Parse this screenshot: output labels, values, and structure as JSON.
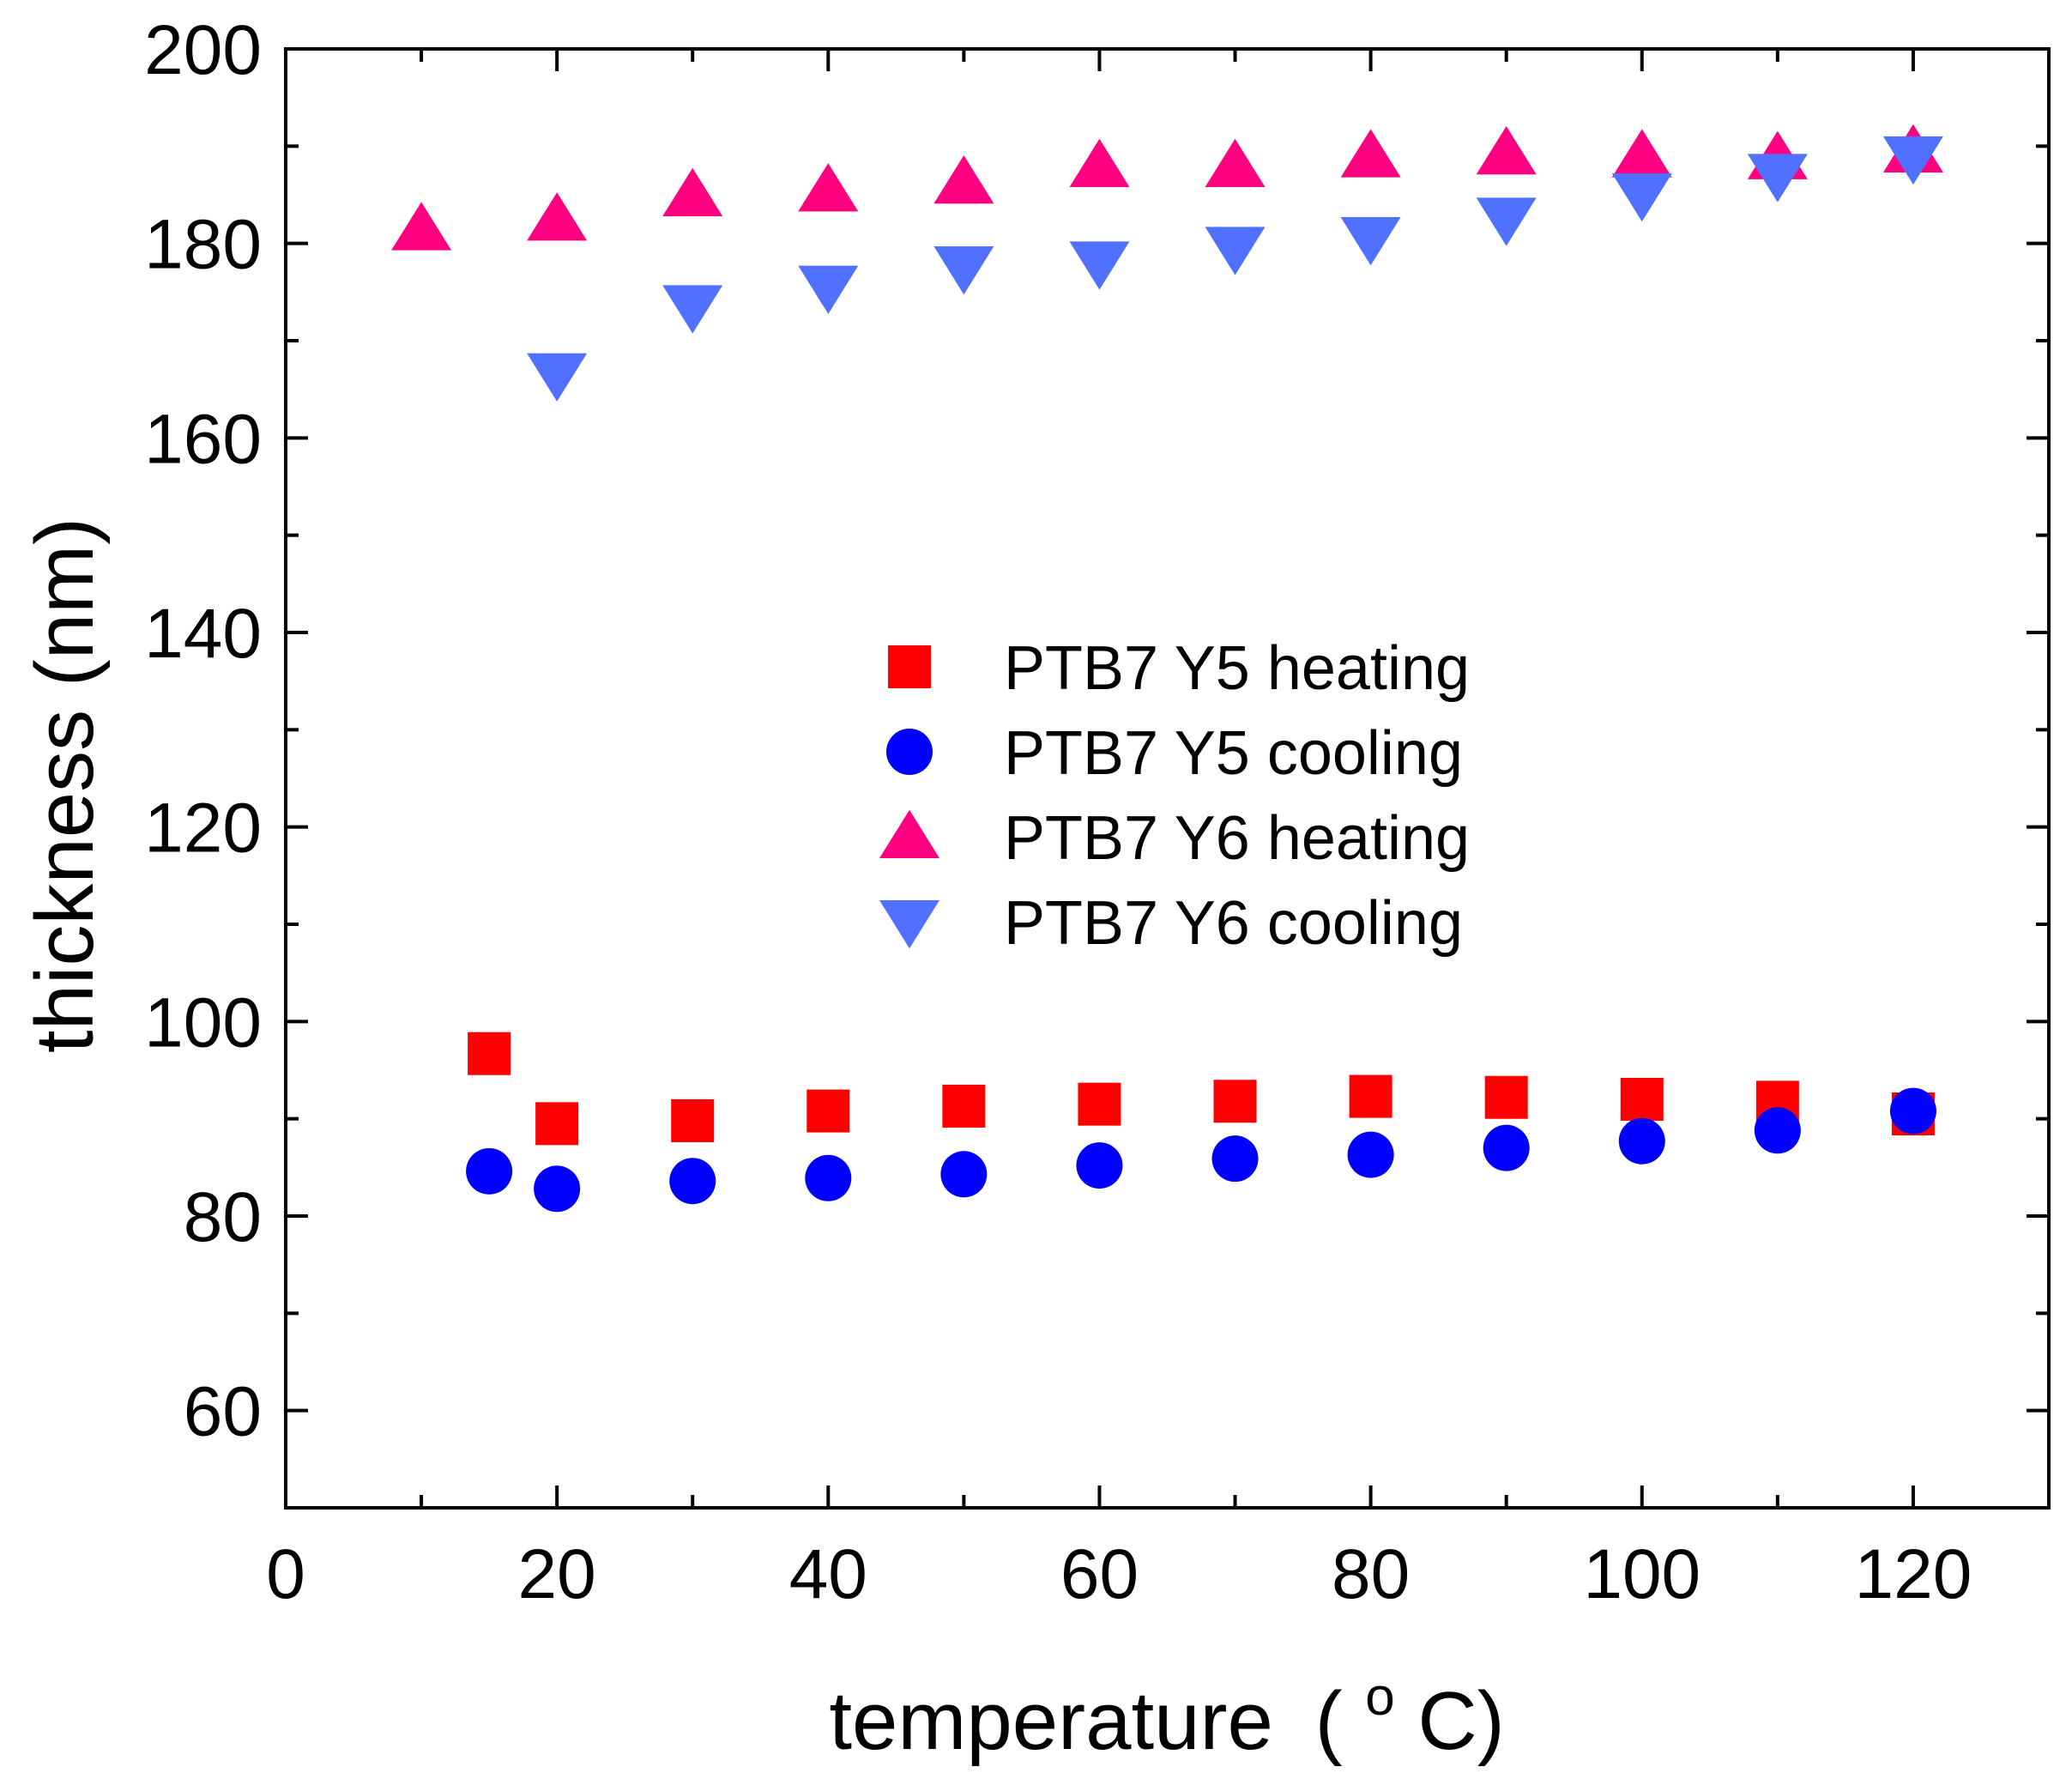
{
  "chart_data": {
    "type": "scatter",
    "title": "",
    "xlabel": "temperature",
    "xlabel_unit_prefix": "(",
    "xlabel_unit_sup": "o",
    "xlabel_unit_suffix": "C)",
    "ylabel": "thickness (nm)",
    "xlim": [
      0,
      130
    ],
    "ylim": [
      50,
      200
    ],
    "x_ticks": [
      "0",
      "20",
      "40",
      "60",
      "80",
      "100",
      "120"
    ],
    "y_ticks": [
      "60",
      "80",
      "100",
      "120",
      "140",
      "160",
      "180",
      "200"
    ],
    "grid": false,
    "legend_position": "center",
    "series": [
      {
        "name": "PTB7 Y5 heating",
        "marker": "square",
        "color": "#ff0000",
        "x": [
          15,
          20,
          30,
          40,
          50,
          60,
          70,
          80,
          90,
          100,
          110,
          120
        ],
        "y": [
          96.7,
          89.5,
          89.8,
          90.8,
          91.3,
          91.5,
          91.8,
          92.3,
          92.2,
          92.0,
          91.7,
          90.5
        ]
      },
      {
        "name": "PTB7 Y5 cooling",
        "marker": "circle",
        "color": "#0000ff",
        "x": [
          15,
          20,
          30,
          40,
          50,
          60,
          70,
          80,
          90,
          100,
          110,
          120
        ],
        "y": [
          84.6,
          82.8,
          83.6,
          83.9,
          84.3,
          85.2,
          85.9,
          86.3,
          87.0,
          87.7,
          88.8,
          90.8
        ]
      },
      {
        "name": "PTB7 Y6 heating",
        "marker": "triangle-up",
        "color": "#ff0080",
        "x": [
          10,
          20,
          30,
          40,
          50,
          60,
          70,
          80,
          90,
          100,
          110,
          120
        ],
        "y": [
          181.5,
          182.5,
          185.0,
          185.5,
          186.3,
          188.0,
          188.0,
          189.0,
          189.3,
          189.0,
          188.8,
          189.5
        ]
      },
      {
        "name": "PTB7 Y6 cooling",
        "marker": "triangle-down",
        "color": "#5070ff",
        "x": [
          20,
          30,
          40,
          50,
          60,
          70,
          80,
          90,
          100,
          110,
          120
        ],
        "y": [
          166.5,
          173.5,
          175.5,
          177.5,
          178.0,
          179.5,
          180.5,
          182.5,
          185.0,
          187.0,
          188.8
        ]
      }
    ]
  }
}
